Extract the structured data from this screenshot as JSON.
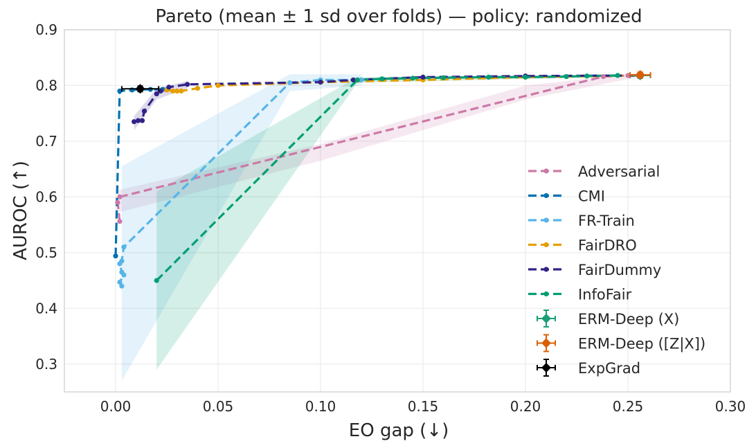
{
  "chart_data": {
    "type": "line",
    "title": "Pareto (mean ± 1 sd over folds) — policy: randomized",
    "xlabel": "EO gap (↓)",
    "ylabel": "AUROC (↑)",
    "xlim": [
      -0.025,
      0.3
    ],
    "ylim": [
      0.25,
      0.9
    ],
    "xticks": [
      "0.00",
      "0.05",
      "0.10",
      "0.15",
      "0.20",
      "0.25",
      "0.30"
    ],
    "xtick_values": [
      0,
      0.05,
      0.1,
      0.15,
      0.2,
      0.25,
      0.3
    ],
    "yticks": [
      "0.3",
      "0.4",
      "0.5",
      "0.6",
      "0.7",
      "0.8",
      "0.9"
    ],
    "ytick_values": [
      0.3,
      0.4,
      0.5,
      0.6,
      0.7,
      0.8,
      0.9
    ],
    "grid": true,
    "legend_position": "lower-right",
    "series": [
      {
        "name": "Adversarial",
        "color": "#cc79a7",
        "style": "dashed",
        "points": [
          [
            0.002,
            0.556
          ],
          [
            0.001,
            0.59
          ],
          [
            0.002,
            0.6
          ],
          [
            0.238,
            0.816
          ],
          [
            0.25,
            0.818
          ],
          [
            0.255,
            0.818
          ]
        ],
        "band": [
          [
            0.001,
            0.572,
            0.612
          ],
          [
            0.1,
            0.665,
            0.695
          ],
          [
            0.2,
            0.775,
            0.8
          ],
          [
            0.255,
            0.815,
            0.822
          ]
        ]
      },
      {
        "name": "CMI",
        "color": "#0072b2",
        "style": "dashed",
        "points": [
          [
            0.0,
            0.494
          ],
          [
            0.002,
            0.79
          ],
          [
            0.008,
            0.792
          ],
          [
            0.012,
            0.793
          ],
          [
            0.017,
            0.793
          ],
          [
            0.023,
            0.793
          ]
        ],
        "band": []
      },
      {
        "name": "FR-Train",
        "color": "#56b4e9",
        "style": "dashed",
        "points": [
          [
            0.003,
            0.44
          ],
          [
            0.002,
            0.447
          ],
          [
            0.004,
            0.46
          ],
          [
            0.003,
            0.465
          ],
          [
            0.002,
            0.48
          ],
          [
            0.003,
            0.485
          ],
          [
            0.004,
            0.51
          ],
          [
            0.085,
            0.805
          ],
          [
            0.1,
            0.81
          ],
          [
            0.12,
            0.81
          ]
        ],
        "band": [
          [
            0.003,
            0.27,
            0.655
          ],
          [
            0.085,
            0.79,
            0.82
          ],
          [
            0.12,
            0.8,
            0.82
          ]
        ]
      },
      {
        "name": "FairDRO",
        "color": "#e69f00",
        "style": "dashed",
        "points": [
          [
            0.025,
            0.792
          ],
          [
            0.028,
            0.79
          ],
          [
            0.03,
            0.79
          ],
          [
            0.032,
            0.79
          ],
          [
            0.04,
            0.795
          ],
          [
            0.05,
            0.8
          ],
          [
            0.1,
            0.806
          ],
          [
            0.15,
            0.81
          ],
          [
            0.2,
            0.815
          ],
          [
            0.256,
            0.818
          ]
        ],
        "band": []
      },
      {
        "name": "FairDummy",
        "color": "#332288",
        "style": "dashed",
        "points": [
          [
            0.009,
            0.735
          ],
          [
            0.011,
            0.737
          ],
          [
            0.013,
            0.737
          ],
          [
            0.014,
            0.754
          ],
          [
            0.02,
            0.785
          ],
          [
            0.022,
            0.79
          ],
          [
            0.026,
            0.797
          ],
          [
            0.035,
            0.802
          ],
          [
            0.1,
            0.806
          ],
          [
            0.116,
            0.81
          ],
          [
            0.15,
            0.815
          ],
          [
            0.2,
            0.817
          ],
          [
            0.256,
            0.818
          ]
        ],
        "band": [
          [
            0.009,
            0.72,
            0.745
          ],
          [
            0.02,
            0.775,
            0.795
          ],
          [
            0.035,
            0.795,
            0.808
          ]
        ]
      },
      {
        "name": "InfoFair",
        "color": "#009e73",
        "style": "dashed",
        "points": [
          [
            0.02,
            0.45
          ],
          [
            0.118,
            0.81
          ],
          [
            0.13,
            0.812
          ],
          [
            0.145,
            0.813
          ],
          [
            0.16,
            0.814
          ],
          [
            0.182,
            0.815
          ],
          [
            0.2,
            0.815
          ],
          [
            0.22,
            0.816
          ],
          [
            0.23,
            0.817
          ],
          [
            0.245,
            0.818
          ]
        ],
        "band": [
          [
            0.02,
            0.29,
            0.61
          ],
          [
            0.118,
            0.805,
            0.815
          ],
          [
            0.245,
            0.815,
            0.82
          ]
        ]
      }
    ],
    "error_points": [
      {
        "name": "ERM-Deep (X)",
        "color": "#1b9e77",
        "x": 0.256,
        "y": 0.818,
        "xerr": 0.005,
        "yerr": 0.002
      },
      {
        "name": "ERM-Deep ([Z|X])",
        "color": "#d95f02",
        "x": 0.256,
        "y": 0.819,
        "xerr": 0.005,
        "yerr": 0.002
      },
      {
        "name": "ExpGrad",
        "color": "#000000",
        "x": 0.012,
        "y": 0.794,
        "xerr": 0.009,
        "yerr": 0.003
      }
    ]
  }
}
